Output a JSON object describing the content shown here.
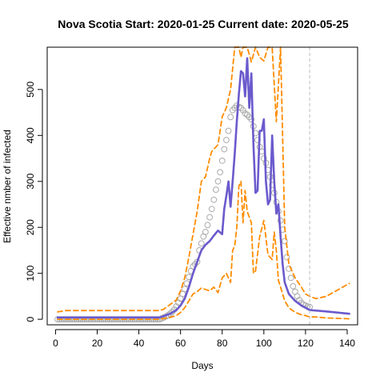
{
  "chart_data": {
    "type": "line",
    "title": "Nova Scotia Start:  2020-01-25   Current date:  2020-05-25",
    "xlabel": "Days",
    "ylabel": "Effective nmber of infected",
    "xlim": [
      -4,
      145
    ],
    "ylim": [
      -12,
      592
    ],
    "x_ticks": [
      0,
      20,
      40,
      60,
      80,
      100,
      120,
      140
    ],
    "y_ticks": [
      0,
      100,
      200,
      300,
      400,
      500
    ],
    "grid": false,
    "legend": "none",
    "current_day_marker": 122,
    "colors": {
      "estimate": "#6A5ACD",
      "bounds": "#FF8C00",
      "observed": "#AAAAAA",
      "marker_line": "#BBBBBB"
    },
    "series": [
      {
        "style": "solid",
        "color": "#6A5ACD",
        "x": [
          1,
          10,
          20,
          30,
          40,
          50,
          52,
          55,
          58,
          60,
          62,
          64,
          66,
          68,
          70,
          72,
          74,
          76,
          78,
          80,
          81,
          82,
          83,
          84,
          85,
          86,
          87,
          88,
          89,
          90,
          91,
          92,
          93,
          94,
          95,
          96,
          97,
          98,
          99,
          100,
          101,
          102,
          103,
          104,
          105,
          106,
          107,
          108,
          109,
          110,
          112,
          115,
          118,
          120,
          122,
          130,
          141
        ],
        "y": [
          4,
          4,
          4,
          4,
          4,
          4,
          7,
          12,
          20,
          30,
          45,
          70,
          100,
          125,
          150,
          162,
          170,
          182,
          193,
          185,
          240,
          268,
          300,
          245,
          300,
          360,
          430,
          490,
          540,
          535,
          485,
          568,
          460,
          535,
          380,
          275,
          280,
          410,
          410,
          435,
          300,
          250,
          260,
          400,
          300,
          230,
          250,
          180,
          120,
          80,
          55,
          40,
          30,
          25,
          20,
          17,
          12
        ]
      },
      {
        "style": "dashed",
        "color": "#FF8C00",
        "x": [
          1,
          5,
          10,
          20,
          30,
          40,
          50,
          52,
          55,
          58,
          60,
          62,
          64,
          66,
          68,
          70,
          72,
          74,
          75,
          76,
          78,
          80,
          82,
          84,
          85,
          86,
          87,
          88,
          89,
          90,
          92,
          94,
          96,
          98,
          100,
          102,
          104,
          106,
          108,
          110,
          112,
          115,
          118,
          120,
          122,
          125,
          130,
          141
        ],
        "y": [
          16,
          19,
          19,
          19,
          19,
          19,
          19,
          22,
          32,
          42,
          62,
          90,
          135,
          185,
          235,
          300,
          310,
          350,
          365,
          370,
          380,
          440,
          460,
          500,
          545,
          592,
          592,
          592,
          570,
          592,
          592,
          560,
          592,
          570,
          562,
          592,
          592,
          430,
          592,
          200,
          120,
          90,
          70,
          55,
          50,
          45,
          50,
          78
        ]
      },
      {
        "style": "dashed",
        "color": "#FF8C00",
        "x": [
          1,
          5,
          10,
          20,
          30,
          40,
          50,
          52,
          55,
          58,
          60,
          62,
          64,
          66,
          68,
          70,
          72,
          74,
          76,
          78,
          80,
          82,
          84,
          85,
          86,
          87,
          88,
          89,
          90,
          91,
          92,
          94,
          95,
          96,
          98,
          100,
          102,
          104,
          105,
          106,
          107,
          108,
          110,
          112,
          115,
          118,
          120,
          122,
          125,
          130,
          141
        ],
        "y": [
          0,
          0,
          0,
          0,
          0,
          0,
          0,
          2,
          4,
          8,
          15,
          25,
          40,
          55,
          60,
          68,
          65,
          62,
          70,
          58,
          90,
          100,
          80,
          150,
          160,
          200,
          290,
          300,
          210,
          280,
          235,
          210,
          100,
          105,
          180,
          215,
          140,
          130,
          190,
          150,
          85,
          70,
          40,
          25,
          15,
          10,
          8,
          5,
          5,
          3,
          1
        ]
      }
    ],
    "observed": {
      "x": [
        1,
        2,
        3,
        4,
        5,
        6,
        7,
        8,
        9,
        10,
        11,
        12,
        13,
        14,
        15,
        16,
        17,
        18,
        19,
        20,
        21,
        22,
        23,
        24,
        25,
        26,
        27,
        28,
        29,
        30,
        31,
        32,
        33,
        34,
        35,
        36,
        37,
        38,
        39,
        40,
        41,
        42,
        43,
        44,
        45,
        46,
        47,
        48,
        49,
        50,
        51,
        52,
        53,
        54,
        55,
        56,
        57,
        58,
        59,
        60,
        61,
        62,
        63,
        64,
        65,
        66,
        67,
        68,
        69,
        70,
        71,
        72,
        73,
        74,
        75,
        76,
        77,
        78,
        79,
        80,
        81,
        82,
        83,
        84,
        85,
        86,
        87,
        88,
        89,
        90,
        91,
        92,
        93,
        94,
        95,
        96,
        97,
        98,
        99,
        100,
        101,
        102,
        103,
        104,
        105,
        106,
        107,
        108,
        109,
        110,
        111,
        112,
        113,
        114,
        115,
        116,
        117,
        118,
        119,
        120,
        121,
        122
      ],
      "y": [
        0,
        0,
        0,
        0,
        0,
        0,
        0,
        0,
        0,
        0,
        0,
        0,
        0,
        0,
        0,
        0,
        0,
        0,
        0,
        0,
        0,
        0,
        0,
        0,
        0,
        0,
        0,
        0,
        0,
        0,
        0,
        0,
        0,
        0,
        0,
        0,
        0,
        0,
        0,
        0,
        0,
        0,
        0,
        0,
        0,
        0,
        0,
        0,
        0,
        0,
        2,
        4,
        6,
        9,
        12,
        16,
        21,
        28,
        36,
        45,
        55,
        66,
        78,
        92,
        105,
        115,
        120,
        125,
        150,
        165,
        180,
        190,
        205,
        222,
        240,
        260,
        282,
        300,
        320,
        345,
        370,
        390,
        410,
        440,
        455,
        460,
        465,
        462,
        460,
        455,
        448,
        445,
        440,
        435,
        420,
        405,
        390,
        375,
        365,
        350,
        340,
        325,
        310,
        292,
        275,
        255,
        235,
        215,
        195,
        170,
        135,
        110,
        90,
        72,
        60,
        50,
        42,
        36,
        32,
        30,
        28,
        27
      ]
    }
  }
}
